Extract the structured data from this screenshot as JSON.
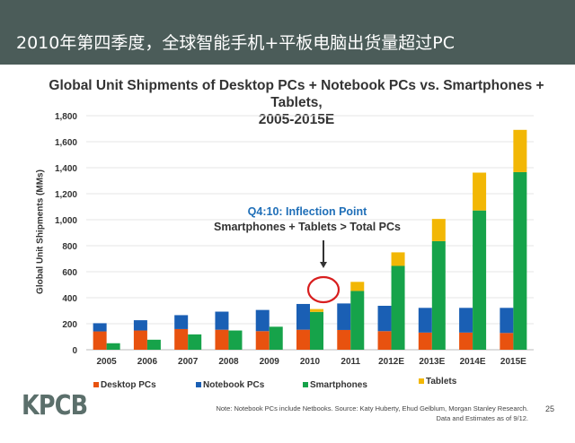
{
  "header": {
    "title": "2010年第四季度，全球智能手机+平板电脑出货量超过PC"
  },
  "footer": {
    "logo": "KPCB",
    "note_line1": "Note: Notebook PCs include Netbooks. Source: Katy Huberty, Ehud Gelblum, Morgan Stanley Research.",
    "note_line2": "Data and Estimates as of 9/12.",
    "page_number": "25"
  },
  "chart_data": {
    "type": "bar",
    "title_line1": "Global Unit Shipments of Desktop PCs + Notebook PCs vs. Smartphones + Tablets,",
    "title_line2": "2005-2015E",
    "ylabel": "Global Unit Shipments (MMs)",
    "xlabel": "",
    "ylim": [
      0,
      1800
    ],
    "yticks": [
      "0",
      "200",
      "400",
      "600",
      "800",
      "1,000",
      "1,200",
      "1,400",
      "1,600",
      "1,800"
    ],
    "grid": true,
    "legend_position": "bottom",
    "categories": [
      "2005",
      "2006",
      "2007",
      "2008",
      "2009",
      "2010",
      "2011",
      "2012E",
      "2013E",
      "2014E",
      "2015E"
    ],
    "series": [
      {
        "name": "Desktop PCs",
        "stack": "PCs",
        "color": "#e8520f",
        "values": [
          141,
          148,
          159,
          154,
          143,
          154,
          152,
          143,
          132,
          132,
          129
        ]
      },
      {
        "name": "Notebook PCs",
        "stack": "PCs",
        "color": "#1a5fb4",
        "values": [
          63,
          79,
          107,
          139,
          163,
          198,
          204,
          195,
          190,
          190,
          193
        ]
      },
      {
        "name": "Smartphones",
        "stack": "Mobile",
        "color": "#16a34a",
        "values": [
          50,
          77,
          118,
          148,
          177,
          291,
          452,
          645,
          835,
          1071,
          1366
        ]
      },
      {
        "name": "Tablets",
        "stack": "Mobile",
        "color": "#f2b705",
        "values": [
          0,
          0,
          0,
          0,
          0,
          22,
          70,
          104,
          171,
          291,
          325
        ]
      }
    ],
    "annotation": {
      "line1": "Q4:10: Inflection Point",
      "line2": "Smartphones + Tablets > Total PCs",
      "line1_color": "#1f6fb8",
      "highlight_category": "2010"
    }
  }
}
